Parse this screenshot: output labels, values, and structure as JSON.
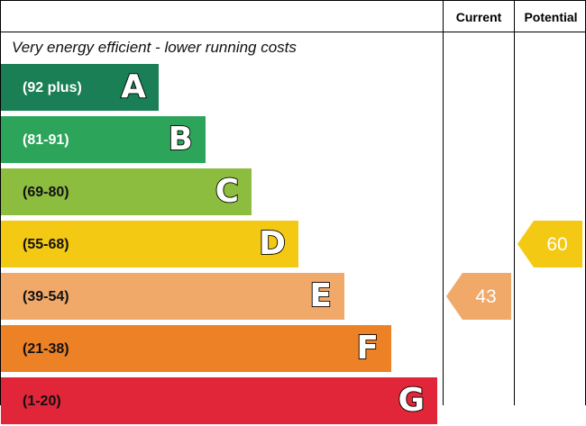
{
  "chart_data": {
    "type": "bar",
    "title": "",
    "top_note": "Very energy efficient - lower running costs",
    "columns": [
      "Current",
      "Potential"
    ],
    "bands": [
      {
        "letter": "A",
        "range": "(92 plus)",
        "color": "#1a7f55",
        "text_color": "#ffffff"
      },
      {
        "letter": "B",
        "range": "(81-91)",
        "color": "#2ca55b",
        "text_color": "#ffffff"
      },
      {
        "letter": "C",
        "range": "(69-80)",
        "color": "#8dbd3f",
        "text_color": "#111111"
      },
      {
        "letter": "D",
        "range": "(55-68)",
        "color": "#f4c913",
        "text_color": "#111111"
      },
      {
        "letter": "E",
        "range": "(39-54)",
        "color": "#f1a96a",
        "text_color": "#111111"
      },
      {
        "letter": "F",
        "range": "(21-38)",
        "color": "#ed8126",
        "text_color": "#111111"
      },
      {
        "letter": "G",
        "range": "(1-20)",
        "color": "#e02638",
        "text_color": "#111111"
      }
    ],
    "current": {
      "value": 43,
      "band": "E",
      "color": "#f1a96a"
    },
    "potential": {
      "value": 60,
      "band": "D",
      "color": "#f4c913"
    }
  }
}
